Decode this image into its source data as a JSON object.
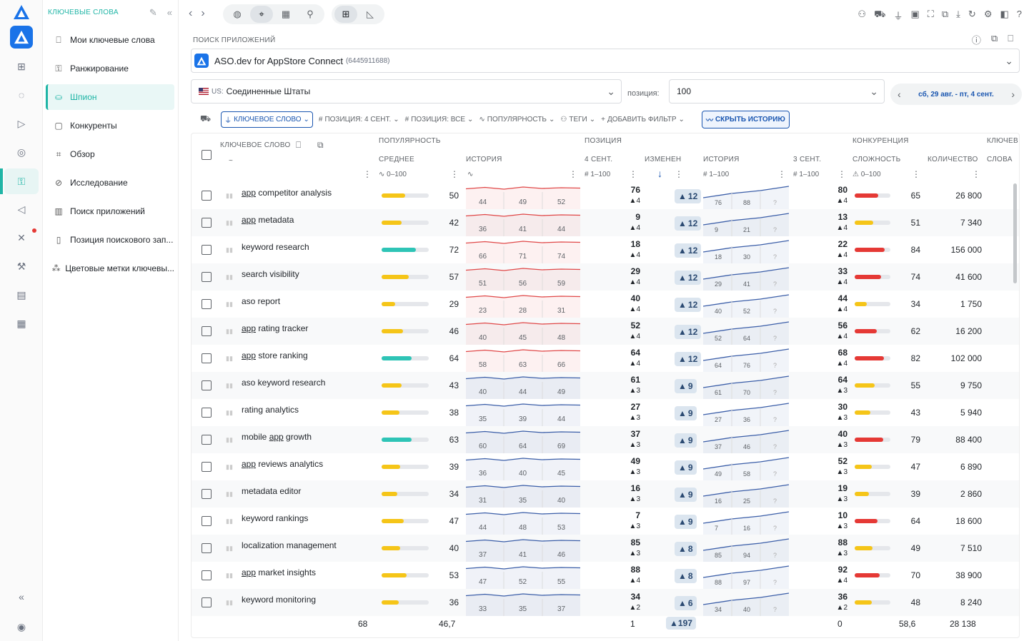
{
  "sidebar": {
    "header": "КЛЮЧЕВЫЕ СЛОВА",
    "items": [
      {
        "label": "Мои ключевые слова",
        "icon": "bookmark-icon"
      },
      {
        "label": "Ранжирование",
        "icon": "key-icon"
      },
      {
        "label": "Шпион",
        "icon": "spy-icon",
        "active": true
      },
      {
        "label": "Конкуренты",
        "icon": "book-icon"
      },
      {
        "label": "Обзор",
        "icon": "scan-icon"
      },
      {
        "label": "Исследование",
        "icon": "compass-icon"
      },
      {
        "label": "Поиск приложений",
        "icon": "bar-chart-icon"
      },
      {
        "label": "Позиция поискового зап...",
        "icon": "document-icon"
      },
      {
        "label": "Цветовые метки ключевы...",
        "icon": "tags-icon"
      }
    ]
  },
  "search": {
    "label": "ПОИСК ПРИЛОЖЕНИЙ",
    "app_name": "ASO.dev for AppStore Connect",
    "app_id": "(6445911688)"
  },
  "country": {
    "code": "US:",
    "name": "Соединенные Штаты"
  },
  "position": {
    "label": "позиция:",
    "value": "100"
  },
  "date_range": {
    "label": "сб, 29 авг. - пт, 4 сент."
  },
  "filters": {
    "keyword": "КЛЮЧЕВОЕ СЛОВО",
    "pos4": "ПОЗИЦИЯ: 4 СЕНТ.",
    "posall": "ПОЗИЦИЯ: ВСЕ",
    "popularity": "ПОПУЛЯРНОСТЬ",
    "tags": "ТЕГИ",
    "add": "ДОБАВИТЬ ФИЛЬТР",
    "hide_history": "СКРЫТЬ ИСТОРИЮ"
  },
  "headers": {
    "keyword": "КЛЮЧЕВОЕ СЛОВО",
    "popularity": "ПОПУЛЯРНОСТЬ",
    "average": "СРЕДНЕЕ",
    "history": "ИСТОРИЯ",
    "position": "ПОЗИЦИЯ",
    "sep4": "4 СЕНТ.",
    "change": "ИЗМЕНЕНИ",
    "history2": "ИСТОРИЯ",
    "sep3": "3 СЕНТ.",
    "competition": "КОНКУРЕНЦИЯ",
    "difficulty": "СЛОЖНОСТЬ",
    "count": "КОЛИЧЕСТВО",
    "keywords": "КЛЮЧЕВ",
    "words": "СЛОВА",
    "range_pop": "0–100",
    "range_pos": "1–100",
    "range_pos2": "1–100",
    "range_diff": "0–100"
  },
  "rows": [
    {
      "pre": "app",
      "kw": " competitor analysis",
      "pop": 50,
      "h": [
        44,
        49,
        52
      ],
      "p": 76,
      "pd": 4,
      "chg": 12,
      "h2": [
        76,
        88
      ],
      "p2": 80,
      "pd2": 4,
      "diff": 65,
      "cnt": "26 800"
    },
    {
      "pre": "app",
      "kw": " metadata",
      "pop": 42,
      "h": [
        36,
        41,
        44
      ],
      "p": 9,
      "pd": 4,
      "chg": 12,
      "h2": [
        9,
        21
      ],
      "p2": 13,
      "pd2": 4,
      "diff": 51,
      "cnt": "7 340"
    },
    {
      "pre": "",
      "kw": "keyword research",
      "pop": 72,
      "h": [
        66,
        71,
        74
      ],
      "p": 18,
      "pd": 4,
      "chg": 12,
      "h2": [
        18,
        30
      ],
      "p2": 22,
      "pd2": 4,
      "diff": 84,
      "cnt": "156 000"
    },
    {
      "pre": "",
      "kw": "search visibility",
      "pop": 57,
      "h": [
        51,
        56,
        59
      ],
      "p": 29,
      "pd": 4,
      "chg": 12,
      "h2": [
        29,
        41
      ],
      "p2": 33,
      "pd2": 4,
      "diff": 74,
      "cnt": "41 600"
    },
    {
      "pre": "",
      "kw": "aso report",
      "pop": 29,
      "h": [
        23,
        28,
        31
      ],
      "p": 40,
      "pd": 4,
      "chg": 12,
      "h2": [
        40,
        52
      ],
      "p2": 44,
      "pd2": 4,
      "diff": 34,
      "cnt": "1 750"
    },
    {
      "pre": "app",
      "kw": " rating tracker",
      "pop": 46,
      "h": [
        40,
        45,
        48
      ],
      "p": 52,
      "pd": 4,
      "chg": 12,
      "h2": [
        52,
        64
      ],
      "p2": 56,
      "pd2": 4,
      "diff": 62,
      "cnt": "16 200"
    },
    {
      "pre": "app",
      "kw": " store ranking",
      "pop": 64,
      "h": [
        58,
        63,
        66
      ],
      "p": 64,
      "pd": 4,
      "chg": 12,
      "h2": [
        64,
        76
      ],
      "p2": 68,
      "pd2": 4,
      "diff": 82,
      "cnt": "102 000"
    },
    {
      "pre": "",
      "kw": "aso keyword research",
      "pop": 43,
      "h": [
        40,
        44,
        49
      ],
      "p": 61,
      "pd": 3,
      "chg": 9,
      "h2": [
        61,
        70
      ],
      "p2": 64,
      "pd2": 3,
      "diff": 55,
      "cnt": "9 750"
    },
    {
      "pre": "",
      "kw": "rating analytics",
      "pop": 38,
      "h": [
        35,
        39,
        44
      ],
      "p": 27,
      "pd": 3,
      "chg": 9,
      "h2": [
        27,
        36
      ],
      "p2": 30,
      "pd2": 3,
      "diff": 43,
      "cnt": "5 940"
    },
    {
      "pre": "mobile ",
      "mid": "app",
      "kw": " growth",
      "pop": 63,
      "h": [
        60,
        64,
        69
      ],
      "p": 37,
      "pd": 3,
      "chg": 9,
      "h2": [
        37,
        46
      ],
      "p2": 40,
      "pd2": 3,
      "diff": 79,
      "cnt": "88 400"
    },
    {
      "pre": "app",
      "kw": " reviews analytics",
      "pop": 39,
      "h": [
        36,
        40,
        45
      ],
      "p": 49,
      "pd": 3,
      "chg": 9,
      "h2": [
        49,
        58
      ],
      "p2": 52,
      "pd2": 3,
      "diff": 47,
      "cnt": "6 890"
    },
    {
      "pre": "",
      "kw": "metadata editor",
      "pop": 34,
      "h": [
        31,
        35,
        40
      ],
      "p": 16,
      "pd": 3,
      "chg": 9,
      "h2": [
        16,
        25
      ],
      "p2": 19,
      "pd2": 3,
      "diff": 39,
      "cnt": "2 860"
    },
    {
      "pre": "",
      "kw": "keyword rankings",
      "pop": 47,
      "h": [
        44,
        48,
        53
      ],
      "p": 7,
      "pd": 3,
      "chg": 9,
      "h2": [
        7,
        16
      ],
      "p2": 10,
      "pd2": 3,
      "diff": 64,
      "cnt": "18 600"
    },
    {
      "pre": "",
      "kw": "localization management",
      "pop": 40,
      "h": [
        37,
        41,
        46
      ],
      "p": 85,
      "pd": 3,
      "chg": 8,
      "h2": [
        85,
        94
      ],
      "p2": 88,
      "pd2": 3,
      "diff": 49,
      "cnt": "7 510"
    },
    {
      "pre": "app",
      "kw": " market insights",
      "pop": 53,
      "h": [
        47,
        52,
        55
      ],
      "p": 88,
      "pd": 4,
      "chg": 8,
      "h2": [
        88,
        97
      ],
      "p2": 92,
      "pd2": 4,
      "diff": 70,
      "cnt": "38 900"
    },
    {
      "pre": "",
      "kw": "keyword monitoring",
      "pop": 36,
      "h": [
        33,
        35,
        37
      ],
      "p": 34,
      "pd": 2,
      "chg": 6,
      "h2": [
        34,
        40
      ],
      "p2": 36,
      "pd2": 2,
      "diff": 48,
      "cnt": "8 240"
    }
  ],
  "footer": {
    "count": "68",
    "avg": "46,7",
    "pos": "1",
    "chg": "197",
    "pos2": "0",
    "diff": "58,6",
    "cnt": "28 138"
  },
  "colors": {
    "accent": "#1fb5a6",
    "blue": "#1a56b0",
    "yellow": "#f5c518",
    "teal": "#2ec4b6",
    "red": "#e53935",
    "hist_red": "#e04848",
    "hist_blue": "#3b5ea8"
  }
}
